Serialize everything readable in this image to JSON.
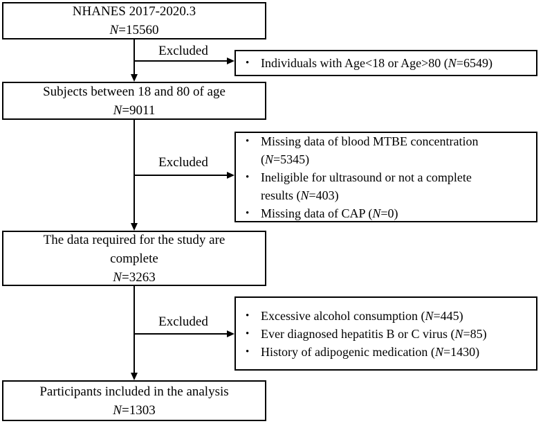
{
  "figure": {
    "background": "#ffffff",
    "line_color": "#000000",
    "bullet_char": "•",
    "main_boxes": [
      {
        "name": "nhanes-population",
        "lines": [
          [
            {
              "t": "NHANES 2017-2020.3"
            }
          ],
          [
            {
              "t": "N",
              "i": true
            },
            {
              "t": "=15560"
            }
          ]
        ]
      },
      {
        "name": "age-filtered",
        "lines": [
          [
            {
              "t": "Subjects between 18 and 80 of age"
            }
          ],
          [
            {
              "t": "N",
              "i": true
            },
            {
              "t": "=9011"
            }
          ]
        ]
      },
      {
        "name": "complete-data",
        "lines": [
          [
            {
              "t": "The data required for the study are"
            }
          ],
          [
            {
              "t": "complete"
            }
          ],
          [
            {
              "t": "N",
              "i": true
            },
            {
              "t": "=3263"
            }
          ]
        ]
      },
      {
        "name": "final-sample",
        "lines": [
          [
            {
              "t": "Participants included in the analysis"
            }
          ],
          [
            {
              "t": "N",
              "i": true
            },
            {
              "t": "=1303"
            }
          ]
        ]
      }
    ],
    "exclusions": [
      {
        "arrow_label": "Excluded",
        "items": [
          [
            {
              "t": "Individuals with Age<18 or Age>80 ("
            },
            {
              "t": "N",
              "i": true
            },
            {
              "t": "=6549)"
            }
          ]
        ]
      },
      {
        "arrow_label": "Excluded",
        "items": [
          [
            {
              "t": "Missing data of blood MTBE concentration"
            },
            {
              "br": true
            },
            {
              "t": "("
            },
            {
              "t": "N",
              "i": true
            },
            {
              "t": "=5345)"
            }
          ],
          [
            {
              "t": "Ineligible for ultrasound or not a complete"
            },
            {
              "br": true
            },
            {
              "t": "results ("
            },
            {
              "t": "N",
              "i": true
            },
            {
              "t": "=403)"
            }
          ],
          [
            {
              "t": "Missing data of CAP ("
            },
            {
              "t": "N",
              "i": true
            },
            {
              "t": "=0)"
            }
          ]
        ]
      },
      {
        "arrow_label": "Excluded",
        "items": [
          [
            {
              "t": "Excessive alcohol consumption ("
            },
            {
              "t": "N",
              "i": true
            },
            {
              "t": "=445)"
            }
          ],
          [
            {
              "t": "Ever diagnosed hepatitis B or C virus ("
            },
            {
              "t": "N",
              "i": true
            },
            {
              "t": "=85)"
            }
          ],
          [
            {
              "t": "History of adipogenic medication ("
            },
            {
              "t": "N",
              "i": true
            },
            {
              "t": "=1430)"
            }
          ]
        ]
      }
    ]
  }
}
